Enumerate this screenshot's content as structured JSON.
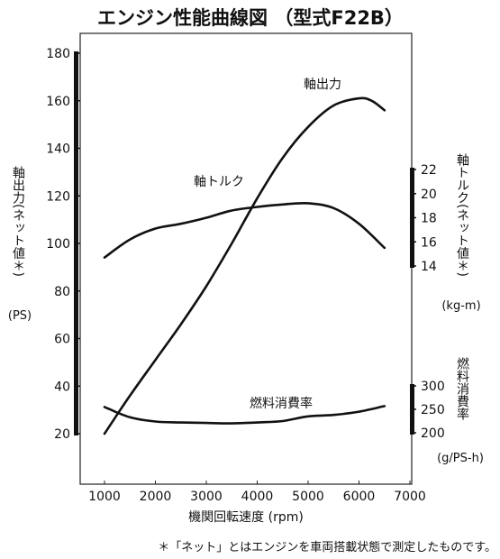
{
  "chart_data": {
    "type": "line",
    "title": "エンジン性能曲線図 （型式F22B）",
    "xlabel": "機関回転速度 (rpm)",
    "x_ticks": [
      1000,
      2000,
      3000,
      4000,
      5000,
      6000,
      7000
    ],
    "xlim": [
      700,
      7000
    ],
    "left_axis": {
      "label": "軸出力(ネット値＊)",
      "unit": "(PS)",
      "ticks": [
        20,
        40,
        60,
        80,
        100,
        120,
        140,
        160,
        180
      ],
      "ylim": [
        0,
        190
      ]
    },
    "torque_axis": {
      "label": "軸トルク(ネット値＊)",
      "unit": "(kg-m)",
      "ticks": [
        14,
        16,
        18,
        20,
        22
      ]
    },
    "fuel_axis": {
      "label": "燃料消費率",
      "unit": "(g/PS-h)",
      "ticks": [
        200,
        250,
        300
      ]
    },
    "series": [
      {
        "name": "軸出力",
        "axis": "left",
        "x": [
          1000,
          1500,
          2000,
          2500,
          3000,
          3500,
          4000,
          4500,
          5000,
          5500,
          6000,
          6250,
          6500
        ],
        "values": [
          20,
          36,
          51,
          66,
          82,
          100,
          119,
          136,
          149,
          158,
          161,
          160,
          156
        ]
      },
      {
        "name": "軸トルク",
        "axis": "torque",
        "x": [
          1000,
          1500,
          2000,
          2500,
          3000,
          3500,
          4000,
          4500,
          5000,
          5500,
          6000,
          6500
        ],
        "values": [
          14.7,
          16.2,
          17.1,
          17.5,
          18.0,
          18.6,
          18.9,
          19.1,
          19.2,
          18.8,
          17.5,
          15.5
        ]
      },
      {
        "name": "燃料消費率",
        "axis": "fuel",
        "x": [
          1000,
          1500,
          2000,
          2500,
          3000,
          3500,
          4000,
          4500,
          5000,
          5500,
          6000,
          6500
        ],
        "values": [
          255,
          233,
          224,
          222,
          221,
          220,
          222,
          225,
          235,
          238,
          245,
          257
        ]
      }
    ],
    "grid": false,
    "footnote": "＊「ネット」とはエンジンを車両搭載状態で測定したものです。"
  }
}
